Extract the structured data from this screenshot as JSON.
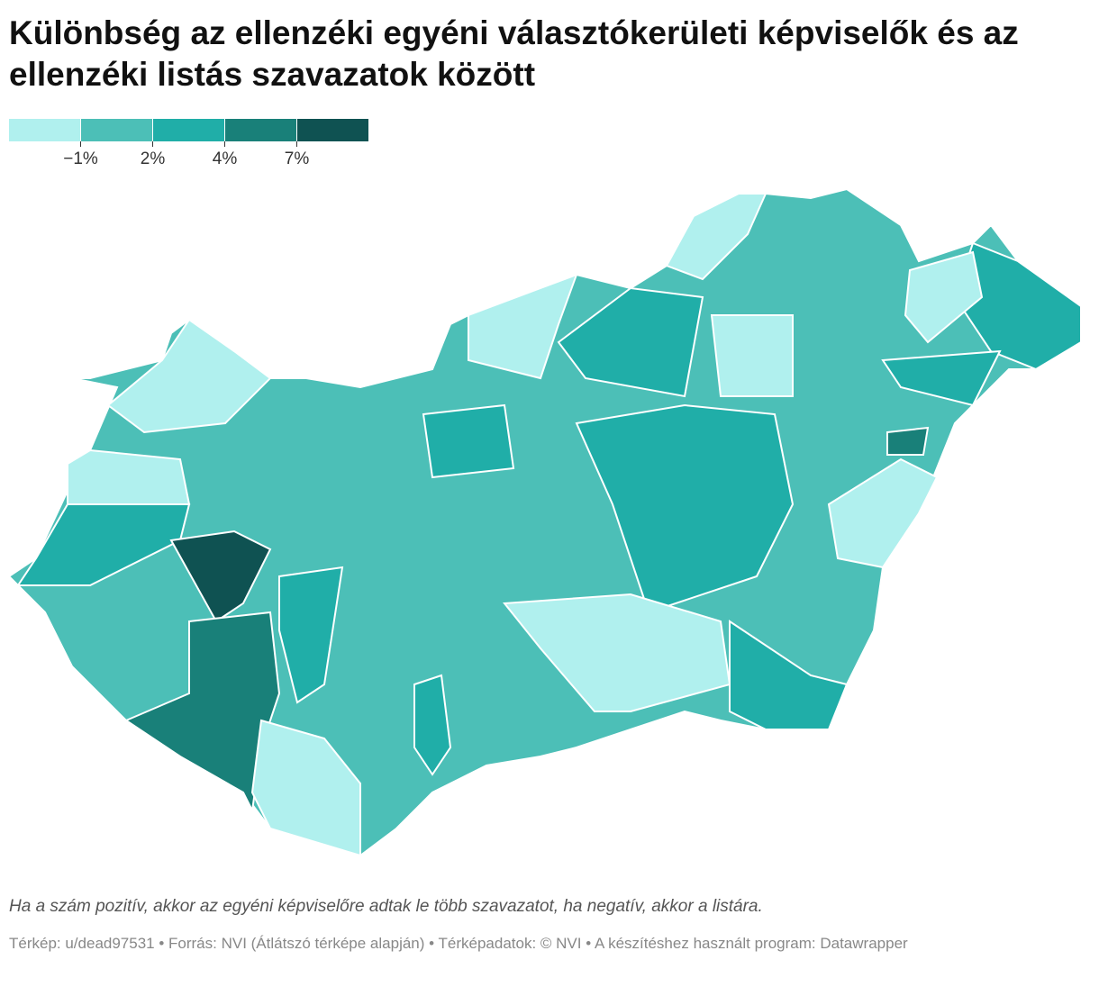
{
  "header": {
    "title": "Különbség az ellenzéki egyéni választókerületi képviselők és az ellenzéki listás szavazatok között"
  },
  "legend": {
    "colors": [
      "#b0f0ee",
      "#4cbfb7",
      "#20aea8",
      "#198079",
      "#0f5252"
    ],
    "ticks": [
      {
        "value": -1,
        "label": "−1%"
      },
      {
        "value": 2,
        "label": "2%"
      },
      {
        "value": 4,
        "label": "4%"
      },
      {
        "value": 7,
        "label": "7%"
      }
    ]
  },
  "notes": "Ha a szám pozitív, akkor az egyéni képviselőre adtak le több szavazatot, ha negatív, akkor a listára.",
  "footer": "Térkép: u/dead97531 • Forrás: NVI (Átlátszó térképe alapján) • Térképadatok: © NVI  • A készítéshez használt program: Datawrapper"
}
